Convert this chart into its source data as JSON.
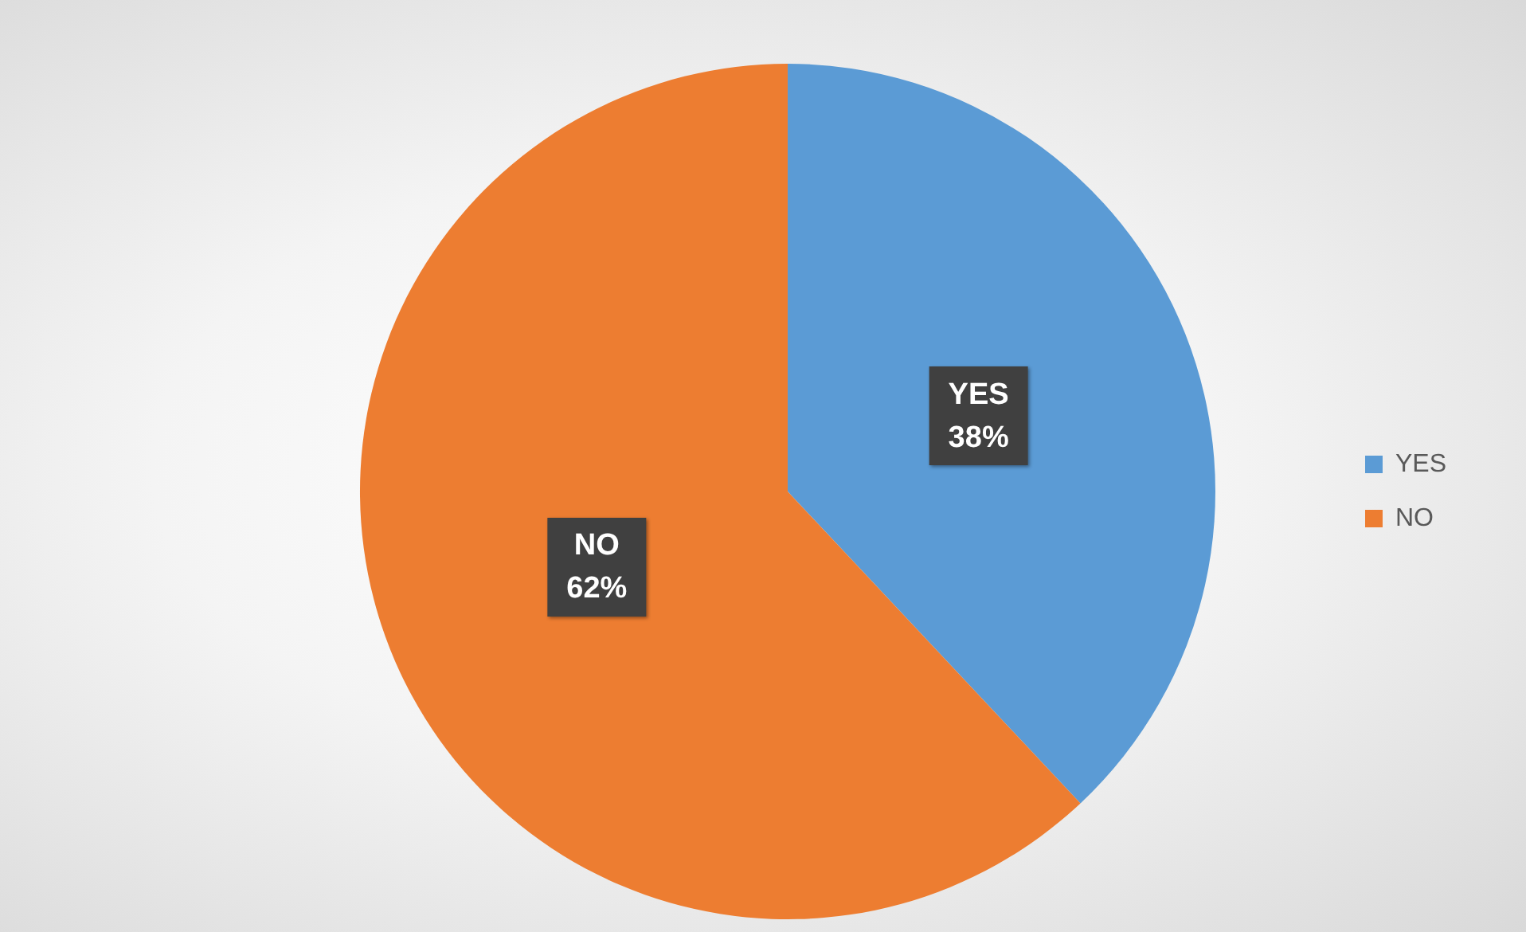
{
  "chart_data": {
    "type": "pie",
    "categories": [
      "YES",
      "NO"
    ],
    "values": [
      38,
      62
    ],
    "colors": [
      "#5b9bd5",
      "#ed7d31"
    ],
    "value_labels": [
      "38%",
      "62%"
    ],
    "legend": "right"
  }
}
